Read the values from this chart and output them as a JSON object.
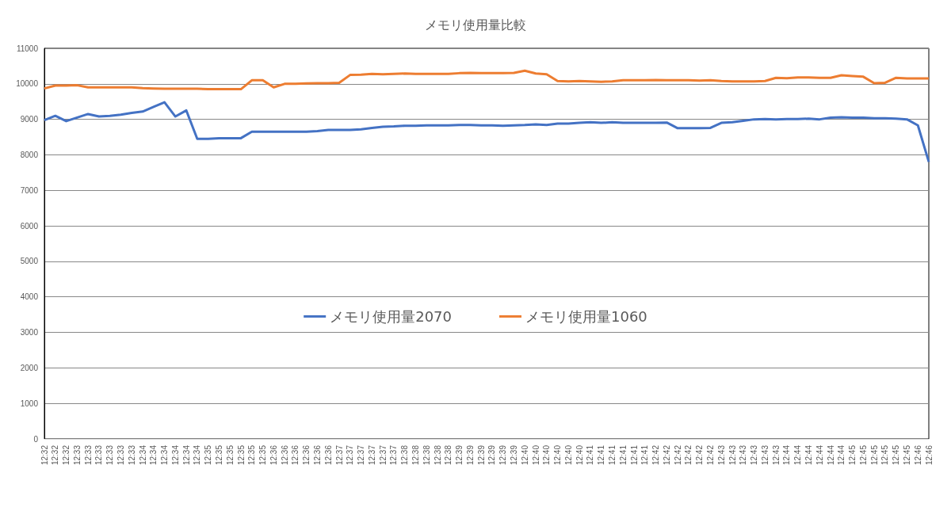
{
  "chart_data": {
    "type": "line",
    "title": "メモリ使用量比較",
    "categories": [
      "12:32",
      "12:32",
      "12:32",
      "12:33",
      "12:33",
      "12:33",
      "12:33",
      "12:33",
      "12:33",
      "12:34",
      "12:34",
      "12:34",
      "12:34",
      "12:34",
      "12:34",
      "12:35",
      "12:35",
      "12:35",
      "12:35",
      "12:35",
      "12:35",
      "12:36",
      "12:36",
      "12:36",
      "12:36",
      "12:36",
      "12:36",
      "12:37",
      "12:37",
      "12:37",
      "12:37",
      "12:37",
      "12:37",
      "12:38",
      "12:38",
      "12:38",
      "12:38",
      "12:38",
      "12:39",
      "12:39",
      "12:39",
      "12:39",
      "12:39",
      "12:39",
      "12:40",
      "12:40",
      "12:40",
      "12:40",
      "12:40",
      "12:40",
      "12:41",
      "12:41",
      "12:41",
      "12:41",
      "12:41",
      "12:41",
      "12:42",
      "12:42",
      "12:42",
      "12:42",
      "12:42",
      "12:42",
      "12:43",
      "12:43",
      "12:43",
      "12:43",
      "12:43",
      "12:43",
      "12:44",
      "12:44",
      "12:44",
      "12:44",
      "12:44",
      "12:44",
      "12:45",
      "12:45",
      "12:45",
      "12:45",
      "12:45",
      "12:45",
      "12:46",
      "12:46"
    ],
    "series": [
      {
        "name": "メモリ使用量2070",
        "color": "#4472c4",
        "values": [
          8980,
          9100,
          8950,
          9050,
          9150,
          9080,
          9100,
          9130,
          9180,
          9220,
          9350,
          9480,
          9080,
          9250,
          8450,
          8450,
          8470,
          8470,
          8470,
          8650,
          8650,
          8650,
          8650,
          8650,
          8650,
          8670,
          8700,
          8700,
          8700,
          8720,
          8760,
          8790,
          8800,
          8820,
          8820,
          8830,
          8830,
          8830,
          8840,
          8840,
          8830,
          8830,
          8820,
          8830,
          8840,
          8860,
          8840,
          8880,
          8880,
          8900,
          8920,
          8900,
          8920,
          8900,
          8900,
          8900,
          8900,
          8910,
          8750,
          8750,
          8750,
          8760,
          8900,
          8920,
          8960,
          9000,
          9010,
          9000,
          9010,
          9010,
          9020,
          9000,
          9050,
          9060,
          9050,
          9050,
          9030,
          9030,
          9020,
          9000,
          8830,
          7800
        ]
      },
      {
        "name": "メモリ使用量1060",
        "color": "#ed7d31",
        "values": [
          9870,
          9950,
          9950,
          9960,
          9900,
          9900,
          9900,
          9900,
          9900,
          9880,
          9870,
          9860,
          9860,
          9860,
          9860,
          9850,
          9850,
          9850,
          9850,
          10100,
          10100,
          9900,
          10000,
          10000,
          10010,
          10020,
          10020,
          10030,
          10250,
          10260,
          10280,
          10270,
          10280,
          10290,
          10280,
          10280,
          10280,
          10280,
          10300,
          10310,
          10300,
          10300,
          10300,
          10310,
          10370,
          10290,
          10270,
          10080,
          10070,
          10080,
          10070,
          10060,
          10070,
          10100,
          10100,
          10100,
          10110,
          10100,
          10100,
          10100,
          10090,
          10100,
          10080,
          10070,
          10070,
          10070,
          10080,
          10170,
          10160,
          10180,
          10180,
          10170,
          10170,
          10240,
          10220,
          10200,
          10020,
          10030,
          10170,
          10150,
          10150,
          10150
        ]
      }
    ],
    "ylim": [
      0,
      11000
    ],
    "yticks": [
      0,
      1000,
      2000,
      3000,
      4000,
      5000,
      6000,
      7000,
      8000,
      9000,
      10000,
      11000
    ],
    "grid": "y",
    "legend": "center",
    "marker": "none",
    "line_style": "solid"
  }
}
